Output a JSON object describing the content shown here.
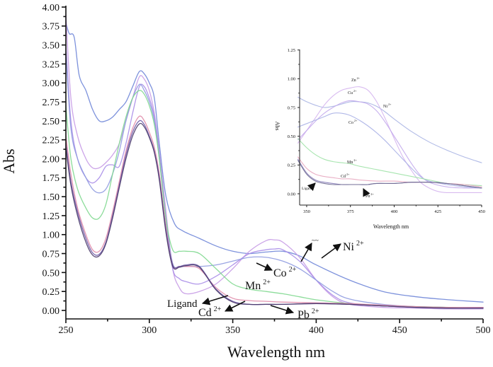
{
  "chart_data": [
    {
      "id": "main",
      "type": "line",
      "title": "",
      "xlabel": "Wavelength nm",
      "ylabel": "Abs",
      "xlim": [
        250,
        500
      ],
      "ylim": [
        0.0,
        4.0
      ],
      "xticks": [
        "250",
        "300",
        "350",
        "400",
        "450",
        "500"
      ],
      "yticks": [
        "0.00",
        "0.25",
        "0.50",
        "0.75",
        "1.00",
        "1.25",
        "1.50",
        "1.75",
        "2.00",
        "2.25",
        "2.50",
        "2.75",
        "3.00",
        "3.25",
        "3.50",
        "3.75",
        "4.00"
      ],
      "grid": false,
      "series": [
        {
          "name": "Ni",
          "color": "#6f86d8",
          "x": [
            250,
            252,
            255,
            258,
            262,
            266,
            270,
            274,
            278,
            282,
            286,
            290,
            294,
            297,
            300,
            303,
            306,
            310,
            315,
            320,
            330,
            340,
            350,
            360,
            370,
            380,
            390,
            400,
            420,
            440,
            460,
            480,
            500
          ],
          "y": [
            3.8,
            3.65,
            3.6,
            3.1,
            2.9,
            2.65,
            2.5,
            2.5,
            2.55,
            2.65,
            2.75,
            2.95,
            3.15,
            3.12,
            3.0,
            2.8,
            2.2,
            1.5,
            1.15,
            1.05,
            0.95,
            0.85,
            0.78,
            0.75,
            0.77,
            0.78,
            0.72,
            0.6,
            0.4,
            0.25,
            0.18,
            0.14,
            0.11
          ]
        },
        {
          "name": "Zn",
          "color": "#c79be6",
          "x": [
            250,
            253,
            257,
            262,
            266,
            270,
            274,
            278,
            282,
            286,
            290,
            294,
            297,
            300,
            303,
            306,
            310,
            314,
            318,
            322,
            330,
            340,
            350,
            360,
            370,
            375,
            380,
            390,
            400,
            410,
            420,
            440,
            460,
            480,
            500
          ],
          "y": [
            3.9,
            2.8,
            2.3,
            2.0,
            1.88,
            1.88,
            1.95,
            2.05,
            2.2,
            2.5,
            2.8,
            3.08,
            3.05,
            2.9,
            2.6,
            2.1,
            1.3,
            0.55,
            0.3,
            0.22,
            0.25,
            0.35,
            0.55,
            0.78,
            0.92,
            0.93,
            0.9,
            0.7,
            0.4,
            0.18,
            0.08,
            0.04,
            0.03,
            0.02,
            0.02
          ]
        },
        {
          "name": "Cu",
          "color": "#a98de8",
          "x": [
            250,
            253,
            257,
            262,
            266,
            270,
            274,
            278,
            282,
            286,
            290,
            294,
            297,
            300,
            303,
            306,
            310,
            314,
            318,
            322,
            330,
            340,
            350,
            360,
            370,
            375,
            380,
            390,
            400,
            410,
            420,
            440,
            460,
            480,
            500
          ],
          "y": [
            3.5,
            2.5,
            2.0,
            1.75,
            1.68,
            1.75,
            1.9,
            1.92,
            1.9,
            2.2,
            2.6,
            2.95,
            2.95,
            2.8,
            2.55,
            2.05,
            1.2,
            0.55,
            0.42,
            0.38,
            0.35,
            0.45,
            0.6,
            0.75,
            0.8,
            0.81,
            0.8,
            0.65,
            0.4,
            0.2,
            0.1,
            0.06,
            0.05,
            0.04,
            0.04
          ]
        },
        {
          "name": "Co",
          "color": "#8f9be0",
          "x": [
            250,
            253,
            257,
            262,
            266,
            270,
            274,
            278,
            282,
            286,
            290,
            294,
            297,
            300,
            303,
            306,
            310,
            314,
            318,
            322,
            330,
            340,
            350,
            360,
            370,
            380,
            390,
            400,
            410,
            420,
            440,
            460,
            480,
            500
          ],
          "y": [
            3.4,
            2.4,
            2.0,
            1.75,
            1.6,
            1.55,
            1.6,
            1.8,
            2.1,
            2.5,
            2.8,
            2.98,
            2.9,
            2.75,
            2.5,
            2.0,
            1.2,
            0.62,
            0.58,
            0.58,
            0.58,
            0.6,
            0.65,
            0.7,
            0.7,
            0.65,
            0.55,
            0.4,
            0.25,
            0.15,
            0.08,
            0.05,
            0.04,
            0.03
          ]
        },
        {
          "name": "Mn",
          "color": "#7fd88f",
          "x": [
            250,
            253,
            257,
            262,
            266,
            270,
            274,
            278,
            282,
            286,
            290,
            294,
            297,
            300,
            303,
            306,
            310,
            314,
            318,
            322,
            330,
            340,
            350,
            360,
            370,
            380,
            390,
            400,
            420,
            440,
            460,
            480,
            500
          ],
          "y": [
            2.7,
            2.0,
            1.6,
            1.35,
            1.22,
            1.22,
            1.4,
            1.8,
            2.2,
            2.55,
            2.8,
            2.9,
            2.85,
            2.7,
            2.45,
            2.0,
            1.2,
            0.8,
            0.78,
            0.78,
            0.75,
            0.55,
            0.35,
            0.28,
            0.25,
            0.22,
            0.18,
            0.14,
            0.09,
            0.06,
            0.05,
            0.04,
            0.03
          ]
        },
        {
          "name": "Cd",
          "color": "#e08aa8",
          "x": [
            250,
            253,
            257,
            262,
            266,
            270,
            274,
            278,
            282,
            286,
            290,
            294,
            297,
            300,
            303,
            306,
            310,
            314,
            318,
            322,
            330,
            340,
            350,
            360,
            370,
            380,
            400,
            420,
            440,
            460,
            480,
            500
          ],
          "y": [
            2.3,
            1.8,
            1.35,
            1.0,
            0.8,
            0.78,
            0.95,
            1.3,
            1.7,
            2.1,
            2.4,
            2.56,
            2.5,
            2.35,
            2.15,
            1.8,
            1.1,
            0.6,
            0.58,
            0.58,
            0.55,
            0.3,
            0.16,
            0.13,
            0.12,
            0.11,
            0.1,
            0.09,
            0.07,
            0.05,
            0.04,
            0.04
          ]
        },
        {
          "name": "Pb",
          "color": "#6e5aa8",
          "x": [
            250,
            253,
            257,
            262,
            266,
            270,
            274,
            278,
            282,
            286,
            290,
            294,
            297,
            300,
            303,
            306,
            310,
            314,
            318,
            322,
            330,
            340,
            350,
            360,
            370,
            380,
            400,
            420,
            440,
            460,
            480,
            500
          ],
          "y": [
            2.2,
            1.7,
            1.3,
            0.95,
            0.76,
            0.74,
            0.9,
            1.25,
            1.65,
            2.05,
            2.35,
            2.5,
            2.45,
            2.3,
            2.1,
            1.75,
            1.05,
            0.6,
            0.58,
            0.6,
            0.58,
            0.28,
            0.12,
            0.08,
            0.08,
            0.08,
            0.09,
            0.08,
            0.06,
            0.04,
            0.03,
            0.03
          ]
        },
        {
          "name": "Ligand",
          "color": "#4a3a6a",
          "x": [
            250,
            253,
            257,
            262,
            266,
            270,
            274,
            278,
            282,
            286,
            290,
            294,
            297,
            300,
            303,
            306,
            310,
            314,
            318,
            322,
            330,
            340,
            350,
            360,
            370,
            380,
            400,
            420,
            440,
            460,
            480,
            500
          ],
          "y": [
            2.15,
            1.65,
            1.25,
            0.9,
            0.73,
            0.72,
            0.88,
            1.22,
            1.62,
            2.0,
            2.3,
            2.46,
            2.42,
            2.28,
            2.08,
            1.72,
            1.02,
            0.58,
            0.57,
            0.59,
            0.57,
            0.27,
            0.11,
            0.08,
            0.08,
            0.08,
            0.09,
            0.08,
            0.06,
            0.04,
            0.03,
            0.03
          ]
        }
      ],
      "annotations": [
        {
          "label": "Ni",
          "sup": "2+"
        },
        {
          "label": "Co",
          "sup": "2+"
        },
        {
          "label": "Mn",
          "sup": "2+"
        },
        {
          "label": "Ligand",
          "sup": ""
        },
        {
          "label": "Cd",
          "sup": "2+"
        },
        {
          "label": "Pb",
          "sup": "2+"
        }
      ]
    },
    {
      "id": "inset",
      "type": "line",
      "title": "",
      "xlabel": "Wavelength nm",
      "ylabel": "Abs",
      "xlim": [
        345,
        450
      ],
      "ylim": [
        -0.1,
        1.25
      ],
      "xticks": [
        "350",
        "375",
        "400",
        "425",
        "450"
      ],
      "yticks": [
        "0.00",
        "0.25",
        "0.50",
        "0.75",
        "1.00",
        "1.25"
      ],
      "grid": false,
      "series": [
        {
          "name": "Ni",
          "color": "#a7b3e3",
          "x": [
            345,
            350,
            355,
            360,
            365,
            370,
            375,
            380,
            385,
            390,
            395,
            400,
            410,
            420,
            430,
            440,
            450
          ],
          "y": [
            0.84,
            0.8,
            0.77,
            0.75,
            0.76,
            0.78,
            0.8,
            0.8,
            0.79,
            0.76,
            0.71,
            0.65,
            0.54,
            0.45,
            0.38,
            0.32,
            0.27
          ]
        },
        {
          "name": "Zn",
          "color": "#d4b3ee",
          "x": [
            345,
            350,
            355,
            360,
            365,
            370,
            375,
            380,
            385,
            390,
            395,
            400,
            405,
            410,
            415,
            420,
            425,
            430,
            440,
            450
          ],
          "y": [
            0.44,
            0.55,
            0.66,
            0.77,
            0.85,
            0.9,
            0.92,
            0.93,
            0.9,
            0.8,
            0.65,
            0.48,
            0.32,
            0.2,
            0.1,
            0.05,
            0.02,
            0.01,
            0.01,
            0.01
          ]
        },
        {
          "name": "Cu",
          "color": "#c2a8ec",
          "x": [
            345,
            350,
            355,
            360,
            365,
            370,
            375,
            380,
            385,
            390,
            395,
            400,
            405,
            410,
            415,
            420,
            430,
            440,
            450
          ],
          "y": [
            0.47,
            0.55,
            0.63,
            0.7,
            0.75,
            0.79,
            0.81,
            0.8,
            0.78,
            0.72,
            0.62,
            0.5,
            0.38,
            0.26,
            0.16,
            0.1,
            0.06,
            0.05,
            0.05
          ]
        },
        {
          "name": "Co",
          "color": "#a9b0e6",
          "x": [
            345,
            350,
            355,
            360,
            365,
            370,
            375,
            380,
            385,
            390,
            395,
            400,
            405,
            410,
            415,
            420,
            430,
            440,
            450
          ],
          "y": [
            0.58,
            0.61,
            0.64,
            0.67,
            0.7,
            0.7,
            0.68,
            0.64,
            0.59,
            0.53,
            0.46,
            0.38,
            0.3,
            0.22,
            0.15,
            0.11,
            0.08,
            0.06,
            0.05
          ]
        },
        {
          "name": "Mn",
          "color": "#9de2a6",
          "x": [
            345,
            350,
            355,
            360,
            365,
            370,
            375,
            380,
            390,
            400,
            410,
            420,
            430,
            440,
            450
          ],
          "y": [
            0.48,
            0.4,
            0.34,
            0.3,
            0.28,
            0.27,
            0.26,
            0.24,
            0.21,
            0.18,
            0.15,
            0.12,
            0.09,
            0.08,
            0.07
          ]
        },
        {
          "name": "Cd",
          "color": "#e7a6bf",
          "x": [
            345,
            350,
            355,
            360,
            365,
            370,
            375,
            380,
            390,
            400,
            410,
            420,
            430,
            440,
            450
          ],
          "y": [
            0.32,
            0.22,
            0.17,
            0.15,
            0.14,
            0.13,
            0.13,
            0.12,
            0.11,
            0.11,
            0.1,
            0.1,
            0.09,
            0.08,
            0.06
          ]
        },
        {
          "name": "Pb",
          "color": "#8a7fba",
          "x": [
            345,
            350,
            355,
            360,
            365,
            370,
            375,
            380,
            385,
            390,
            400,
            410,
            420,
            430,
            440,
            450
          ],
          "y": [
            0.3,
            0.18,
            0.12,
            0.1,
            0.09,
            0.08,
            0.08,
            0.08,
            0.08,
            0.09,
            0.09,
            0.1,
            0.1,
            0.09,
            0.07,
            0.05
          ]
        },
        {
          "name": "Ligand",
          "color": "#6f6b92",
          "x": [
            345,
            350,
            355,
            360,
            365,
            370,
            375,
            380,
            385,
            390,
            400,
            410,
            420,
            430,
            440,
            450
          ],
          "y": [
            0.29,
            0.17,
            0.11,
            0.09,
            0.08,
            0.08,
            0.08,
            0.08,
            0.08,
            0.09,
            0.09,
            0.1,
            0.1,
            0.09,
            0.07,
            0.05
          ]
        }
      ],
      "annotations": [
        {
          "label": "Zn",
          "sup": "2+"
        },
        {
          "label": "Cu",
          "sup": "2+"
        },
        {
          "label": "Ni",
          "sup": "2+"
        },
        {
          "label": "Co",
          "sup": "2+"
        },
        {
          "label": "Mn",
          "sup": "2+"
        },
        {
          "label": "Cd",
          "sup": "2+"
        },
        {
          "label": "Ligand",
          "sup": ""
        },
        {
          "label": "Pb",
          "sup": "2+"
        }
      ]
    }
  ]
}
